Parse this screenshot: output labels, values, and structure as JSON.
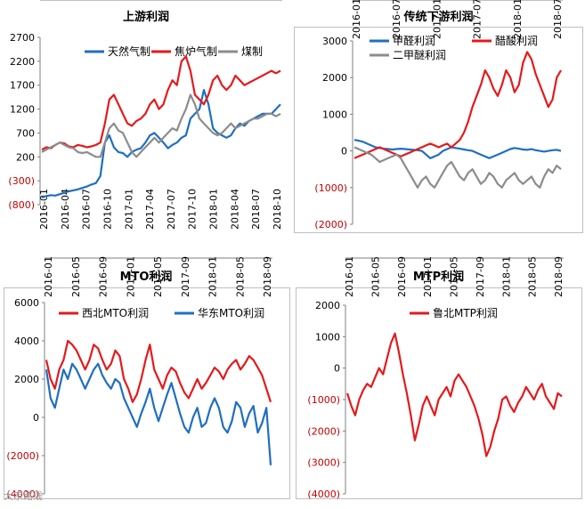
{
  "watermark": "大宗路线",
  "chart_data": [
    {
      "id": "upstream",
      "type": "line",
      "title": "上游利润",
      "y_ticks": [
        "2700",
        "2200",
        "1700",
        "1200",
        "700",
        "200",
        "(300)",
        "(800)"
      ],
      "y_tick_values": [
        2700,
        2200,
        1700,
        1200,
        700,
        200,
        -300,
        -800
      ],
      "ylim": [
        -800,
        2700
      ],
      "x_ticks": [
        "2016-01",
        "2016-04",
        "2016-07",
        "2016-10",
        "2017-01",
        "2017-04",
        "2017-07",
        "2017-10",
        "2018-01",
        "2018-04",
        "2018-07",
        "2018-10"
      ],
      "legend_position": "top",
      "series": [
        {
          "name": "天然气制",
          "color": "#1f6fbf",
          "values": [
            -650,
            -620,
            -600,
            -610,
            -580,
            -550,
            -520,
            -500,
            -480,
            -450,
            -420,
            -380,
            -350,
            -200,
            500,
            650,
            400,
            300,
            280,
            200,
            300,
            350,
            380,
            500,
            650,
            700,
            600,
            500,
            380,
            450,
            500,
            600,
            650,
            1000,
            1100,
            1200,
            1600,
            1300,
            800,
            700,
            650,
            600,
            650,
            800,
            900,
            850,
            950,
            1000,
            1050,
            1100,
            1100,
            1100,
            1200,
            1300
          ]
        },
        {
          "name": "焦炉气制",
          "color": "#e41a1c",
          "values": [
            350,
            400,
            380,
            450,
            500,
            480,
            420,
            400,
            450,
            430,
            400,
            420,
            450,
            500,
            900,
            1400,
            1500,
            1300,
            1100,
            900,
            850,
            950,
            1000,
            1100,
            1300,
            1400,
            1200,
            1300,
            1600,
            1800,
            1700,
            2200,
            2300,
            2000,
            1500,
            1400,
            1300,
            1500,
            1800,
            1900,
            1700,
            1600,
            1700,
            1900,
            1800,
            1700,
            1750,
            1800,
            1850,
            1900,
            1950,
            2000,
            1950,
            2000
          ]
        },
        {
          "name": "煤制",
          "color": "#8c8c8c",
          "values": [
            300,
            350,
            400,
            450,
            500,
            450,
            400,
            380,
            300,
            280,
            300,
            250,
            200,
            200,
            500,
            800,
            900,
            750,
            700,
            500,
            300,
            200,
            300,
            400,
            500,
            600,
            500,
            600,
            700,
            800,
            750,
            1000,
            1200,
            1500,
            1300,
            1000,
            900,
            800,
            700,
            650,
            700,
            800,
            900,
            800,
            850,
            900,
            950,
            1000,
            1000,
            1050,
            1100,
            1100,
            1050,
            1100
          ]
        }
      ]
    },
    {
      "id": "traditional",
      "type": "line",
      "title": "传统下游利润",
      "y_ticks": [
        "3000",
        "2000",
        "1000",
        "0",
        "(1000)",
        "(2000)"
      ],
      "y_tick_values": [
        3000,
        2000,
        1000,
        0,
        -1000,
        -2000
      ],
      "ylim": [
        -2000,
        3000
      ],
      "x_ticks": [
        "2016-01",
        "2016-07",
        "2017-01",
        "2017-07",
        "2018-01",
        "2018-07"
      ],
      "legend_position": "top",
      "series": [
        {
          "name": "甲醛利润",
          "color": "#1f6fbf",
          "values": [
            300,
            280,
            250,
            200,
            150,
            100,
            80,
            60,
            50,
            40,
            50,
            60,
            50,
            40,
            30,
            20,
            0,
            -100,
            -200,
            -150,
            -100,
            0,
            50,
            100,
            80,
            60,
            40,
            20,
            0,
            -50,
            -100,
            -150,
            -200,
            -150,
            -100,
            -50,
            0,
            50,
            80,
            60,
            40,
            30,
            50,
            20,
            0,
            -20,
            0,
            20,
            30,
            0
          ]
        },
        {
          "name": "醋酸利润",
          "color": "#e41a1c",
          "values": [
            -200,
            -150,
            -100,
            -50,
            0,
            50,
            100,
            50,
            0,
            -50,
            -100,
            -150,
            -100,
            -50,
            0,
            50,
            100,
            150,
            200,
            150,
            100,
            150,
            200,
            100,
            200,
            300,
            500,
            800,
            1200,
            1500,
            1800,
            2200,
            2000,
            1700,
            1500,
            1800,
            2200,
            2000,
            1600,
            1800,
            2400,
            2700,
            2500,
            2100,
            1800,
            1500,
            1200,
            1400,
            2000,
            2200
          ]
        },
        {
          "name": "二甲醚利润",
          "color": "#8c8c8c",
          "values": [
            100,
            50,
            0,
            -50,
            -100,
            -200,
            -300,
            -250,
            -200,
            -150,
            -100,
            -200,
            -400,
            -600,
            -800,
            -1000,
            -800,
            -700,
            -900,
            -1000,
            -800,
            -600,
            -400,
            -300,
            -500,
            -700,
            -800,
            -600,
            -500,
            -700,
            -900,
            -800,
            -600,
            -700,
            -900,
            -1000,
            -800,
            -700,
            -600,
            -800,
            -900,
            -800,
            -700,
            -900,
            -1000,
            -700,
            -500,
            -600,
            -400,
            -500
          ]
        }
      ]
    },
    {
      "id": "mto",
      "type": "line",
      "title": "MTO利润",
      "y_ticks": [
        "6000",
        "4000",
        "2000",
        "0",
        "(2000)",
        "(4000)"
      ],
      "y_tick_values": [
        6000,
        4000,
        2000,
        0,
        -2000,
        -4000
      ],
      "ylim": [
        -4000,
        6000
      ],
      "x_ticks": [
        "2016-01",
        "2016-05",
        "2016-09",
        "2017-01",
        "2017-05",
        "2017-09",
        "2018-01",
        "2018-05",
        "2018-09"
      ],
      "legend_position": "top",
      "series": [
        {
          "name": "西北MTO利润",
          "color": "#e41a1c",
          "values": [
            3000,
            2000,
            1500,
            2500,
            3000,
            4000,
            3800,
            3500,
            3000,
            2500,
            3000,
            3800,
            3600,
            3000,
            2500,
            2800,
            3500,
            3200,
            2000,
            1500,
            800,
            1200,
            2000,
            3000,
            3800,
            2500,
            2000,
            1500,
            2200,
            2600,
            2400,
            1800,
            1300,
            1000,
            1500,
            2000,
            1500,
            1800,
            2200,
            2600,
            2400,
            2000,
            2500,
            2800,
            3000,
            2500,
            2800,
            3200,
            3000,
            2600,
            2200,
            1500,
            800
          ]
        },
        {
          "name": "华东MTO利润",
          "color": "#1f6fbf",
          "values": [
            2500,
            1000,
            500,
            1500,
            2500,
            2000,
            2800,
            2500,
            2000,
            1500,
            2000,
            2500,
            2800,
            2200,
            1800,
            1500,
            2000,
            1800,
            1000,
            500,
            0,
            -500,
            200,
            800,
            1500,
            500,
            -200,
            500,
            1200,
            1800,
            1000,
            200,
            -500,
            -800,
            0,
            500,
            -500,
            -300,
            500,
            1000,
            500,
            -500,
            -800,
            -200,
            800,
            500,
            -500,
            200,
            600,
            -800,
            -300,
            500,
            -2500
          ]
        }
      ]
    },
    {
      "id": "mtp",
      "type": "line",
      "title": "MTP利润",
      "y_ticks": [
        "2000",
        "1000",
        "0",
        "(1000)",
        "(2000)",
        "(3000)",
        "(4000)"
      ],
      "y_tick_values": [
        2000,
        1000,
        0,
        -1000,
        -2000,
        -3000,
        -4000
      ],
      "ylim": [
        -4000,
        2000
      ],
      "x_ticks": [
        "2016-01",
        "2016-05",
        "2016-09",
        "2017-01",
        "2017-05",
        "2017-09",
        "2018-01",
        "2018-05",
        "2018-09"
      ],
      "legend_position": "top",
      "series": [
        {
          "name": "鲁北MTP利润",
          "color": "#e41a1c",
          "values": [
            -800,
            -1200,
            -1500,
            -1000,
            -700,
            -500,
            -600,
            -300,
            0,
            -200,
            300,
            800,
            1100,
            500,
            -200,
            -800,
            -1500,
            -2300,
            -1800,
            -1200,
            -900,
            -1200,
            -1500,
            -1000,
            -800,
            -600,
            -900,
            -400,
            -200,
            -400,
            -600,
            -900,
            -1200,
            -1600,
            -2100,
            -2800,
            -2500,
            -2000,
            -1600,
            -1000,
            -900,
            -1200,
            -1400,
            -1100,
            -900,
            -600,
            -800,
            -1000,
            -700,
            -500,
            -900,
            -1100,
            -1300,
            -800,
            -900
          ]
        }
      ]
    }
  ]
}
